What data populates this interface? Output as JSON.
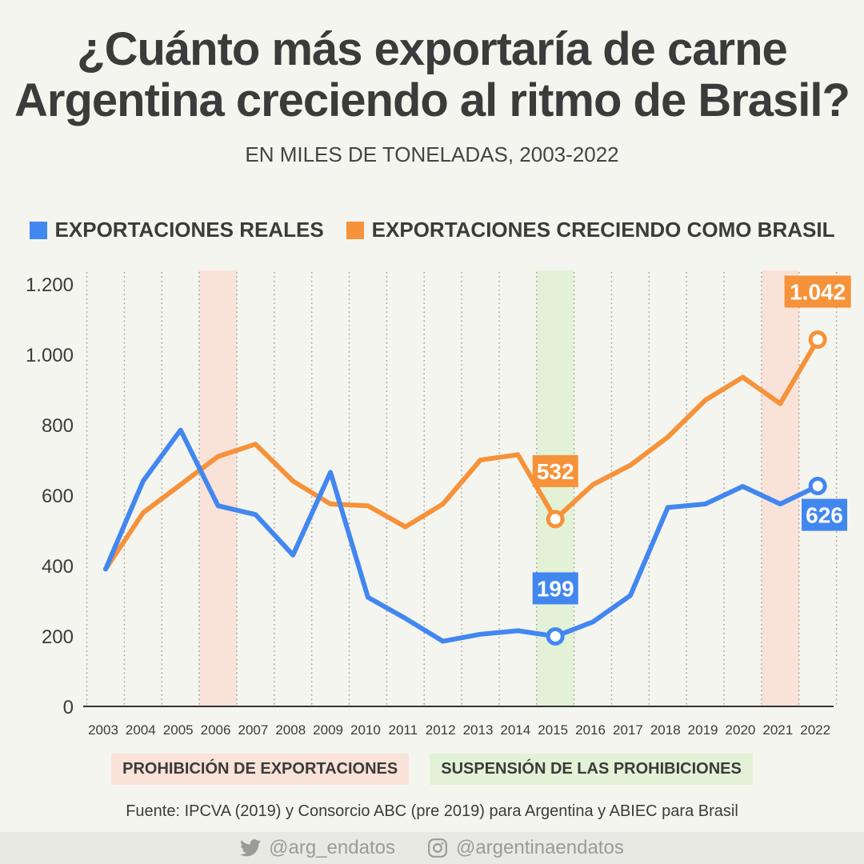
{
  "title": {
    "line1": "¿Cuánto más exportaría de carne",
    "line2": "Argentina creciendo al ritmo de Brasil?"
  },
  "subtitle": "EN MILES DE TONELADAS, 2003-2022",
  "legend": [
    {
      "label": "EXPORTACIONES REALES",
      "color": "#4287f0"
    },
    {
      "label": "EXPORTACIONES CRECIENDO COMO BRASIL",
      "color": "#f6923a"
    }
  ],
  "bands_legend": [
    {
      "label": "PROHIBICIÓN DE EXPORTACIONES",
      "color": "#f9e2d8"
    },
    {
      "label": "SUSPENSIÓN DE LAS PROHIBICIONES",
      "color": "#e3f2d6"
    }
  ],
  "source": "Fuente: IPCVA (2019) y Consorcio ABC (pre 2019) para Argentina y ABIEC para Brasil",
  "footer": {
    "twitter": "@arg_endatos",
    "instagram": "@argentinaendatos"
  },
  "chart_data": {
    "type": "line",
    "x": [
      "2003",
      "2004",
      "2005",
      "2006",
      "2007",
      "2008",
      "2009",
      "2010",
      "2011",
      "2012",
      "2013",
      "2014",
      "2015",
      "2016",
      "2017",
      "2018",
      "2019",
      "2020",
      "2021",
      "2022"
    ],
    "ylim": [
      0,
      1200
    ],
    "yticks": [
      0,
      200,
      400,
      600,
      800,
      1000,
      1200
    ],
    "ytick_labels": [
      "0",
      "200",
      "400",
      "600",
      "800",
      "1.000",
      "1.200"
    ],
    "grid": "vertical-dotted",
    "legend_position": "top-center",
    "series": [
      {
        "name": "EXPORTACIONES REALES",
        "color": "#4287f0",
        "values": [
          390,
          640,
          785,
          570,
          545,
          430,
          665,
          310,
          250,
          185,
          205,
          215,
          199,
          240,
          315,
          565,
          575,
          625,
          575,
          626
        ]
      },
      {
        "name": "EXPORTACIONES CRECIENDO COMO BRASIL",
        "color": "#f6923a",
        "values": [
          390,
          550,
          630,
          710,
          745,
          640,
          575,
          570,
          510,
          575,
          700,
          715,
          532,
          630,
          685,
          765,
          870,
          935,
          860,
          1042
        ]
      }
    ],
    "bands": [
      {
        "from": "2006",
        "to": "2006",
        "kind": "prohibicion",
        "color": "#f9e2d8"
      },
      {
        "from": "2015",
        "to": "2015",
        "kind": "suspension",
        "color": "#e3f2d6"
      },
      {
        "from": "2021",
        "to": "2021",
        "kind": "prohibicion",
        "color": "#f9e2d8"
      }
    ],
    "annotations": [
      {
        "series": 0,
        "x": "2015",
        "label": "199",
        "position": "above"
      },
      {
        "series": 0,
        "x": "2022",
        "label": "626",
        "position": "below"
      },
      {
        "series": 1,
        "x": "2015",
        "label": "532",
        "position": "above"
      },
      {
        "series": 1,
        "x": "2022",
        "label": "1.042",
        "position": "above"
      }
    ]
  }
}
